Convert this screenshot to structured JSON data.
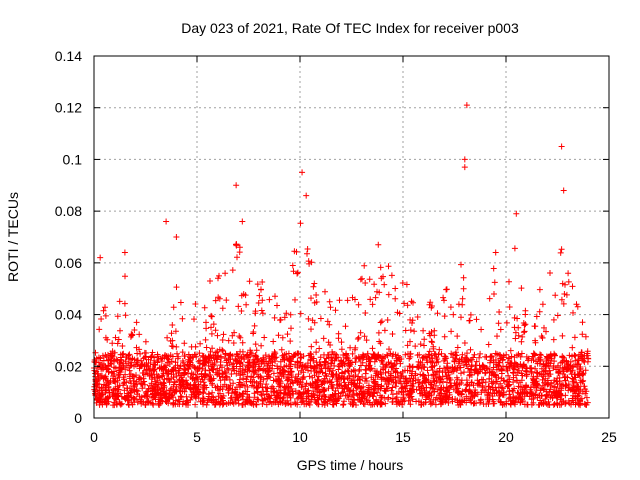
{
  "chart_data": {
    "type": "scatter",
    "title": "Day 023 of 2021, Rate Of TEC Index for receiver p003",
    "xlabel": "GPS time / hours",
    "ylabel": "ROTI / TECUs",
    "xlim": [
      0,
      25
    ],
    "ylim": [
      0,
      0.14
    ],
    "x_ticks": [
      "0",
      "5",
      "10",
      "15",
      "20",
      "25"
    ],
    "y_ticks": [
      "0",
      "0.02",
      "0.04",
      "0.06",
      "0.08",
      "0.1",
      "0.12",
      "0.14"
    ],
    "grid": true,
    "marker": "plus",
    "series_color": "#ff0000",
    "time_range_hours": [
      0,
      24
    ],
    "notable_points": [
      {
        "x": 18.1,
        "y": 0.121
      },
      {
        "x": 18.0,
        "y": 0.1
      },
      {
        "x": 18.0,
        "y": 0.097
      },
      {
        "x": 22.7,
        "y": 0.105
      },
      {
        "x": 10.1,
        "y": 0.095
      },
      {
        "x": 6.9,
        "y": 0.09
      },
      {
        "x": 10.3,
        "y": 0.086
      },
      {
        "x": 22.8,
        "y": 0.088
      },
      {
        "x": 20.5,
        "y": 0.079
      },
      {
        "x": 3.5,
        "y": 0.076
      },
      {
        "x": 7.2,
        "y": 0.076
      },
      {
        "x": 4.0,
        "y": 0.07
      },
      {
        "x": 13.8,
        "y": 0.067
      },
      {
        "x": 1.5,
        "y": 0.064
      },
      {
        "x": 19.5,
        "y": 0.064
      },
      {
        "x": 0.3,
        "y": 0.062
      }
    ],
    "activity_envelope": [
      {
        "x": 0,
        "y": 0.03
      },
      {
        "x": 0.5,
        "y": 0.045
      },
      {
        "x": 1.0,
        "y": 0.04
      },
      {
        "x": 1.5,
        "y": 0.055
      },
      {
        "x": 2.0,
        "y": 0.04
      },
      {
        "x": 2.5,
        "y": 0.035
      },
      {
        "x": 3.0,
        "y": 0.025
      },
      {
        "x": 3.5,
        "y": 0.03
      },
      {
        "x": 4.0,
        "y": 0.055
      },
      {
        "x": 4.5,
        "y": 0.045
      },
      {
        "x": 5.0,
        "y": 0.045
      },
      {
        "x": 5.5,
        "y": 0.055
      },
      {
        "x": 6.0,
        "y": 0.055
      },
      {
        "x": 6.5,
        "y": 0.06
      },
      {
        "x": 7.0,
        "y": 0.07
      },
      {
        "x": 7.5,
        "y": 0.055
      },
      {
        "x": 8.0,
        "y": 0.06
      },
      {
        "x": 8.5,
        "y": 0.05
      },
      {
        "x": 9.0,
        "y": 0.045
      },
      {
        "x": 9.5,
        "y": 0.055
      },
      {
        "x": 10.0,
        "y": 0.08
      },
      {
        "x": 10.5,
        "y": 0.065
      },
      {
        "x": 11.0,
        "y": 0.055
      },
      {
        "x": 11.5,
        "y": 0.05
      },
      {
        "x": 12.0,
        "y": 0.045
      },
      {
        "x": 12.5,
        "y": 0.055
      },
      {
        "x": 13.0,
        "y": 0.06
      },
      {
        "x": 13.5,
        "y": 0.06
      },
      {
        "x": 14.0,
        "y": 0.065
      },
      {
        "x": 14.5,
        "y": 0.055
      },
      {
        "x": 15.0,
        "y": 0.06
      },
      {
        "x": 15.5,
        "y": 0.045
      },
      {
        "x": 16.0,
        "y": 0.05
      },
      {
        "x": 16.5,
        "y": 0.045
      },
      {
        "x": 17.0,
        "y": 0.05
      },
      {
        "x": 17.5,
        "y": 0.05
      },
      {
        "x": 18.0,
        "y": 0.065
      },
      {
        "x": 18.5,
        "y": 0.05
      },
      {
        "x": 19.0,
        "y": 0.055
      },
      {
        "x": 19.5,
        "y": 0.06
      },
      {
        "x": 20.0,
        "y": 0.055
      },
      {
        "x": 20.5,
        "y": 0.07
      },
      {
        "x": 21.0,
        "y": 0.045
      },
      {
        "x": 21.5,
        "y": 0.05
      },
      {
        "x": 22.0,
        "y": 0.055
      },
      {
        "x": 22.5,
        "y": 0.07
      },
      {
        "x": 23.0,
        "y": 0.06
      },
      {
        "x": 23.5,
        "y": 0.045
      },
      {
        "x": 24.0,
        "y": 0.03
      }
    ],
    "baseline_range": [
      0.005,
      0.025
    ]
  }
}
